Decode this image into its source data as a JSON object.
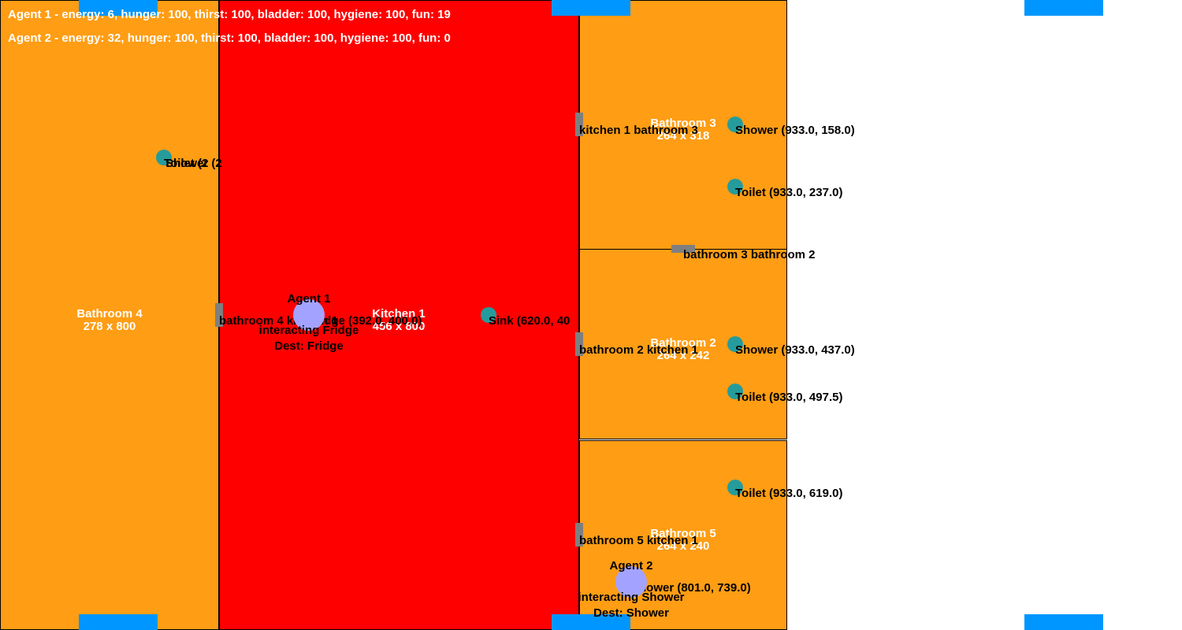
{
  "rooms": {
    "bathroom4": {
      "name": "Bathroom 4",
      "size": "278 x 800",
      "color": "#ff9d14"
    },
    "kitchen1": {
      "name": "Kitchen 1",
      "size": "456 x 800",
      "color": "#ff0000"
    },
    "bathroom3": {
      "name": "Bathroom 3",
      "size": "264 x 318",
      "color": "#ff9d14"
    },
    "bathroom2": {
      "name": "Bathroom 2",
      "size": "264 x 242",
      "color": "#ff9d14"
    },
    "bathroom5": {
      "name": "Bathroom 5",
      "size": "264 x 240",
      "color": "#ff9d14"
    }
  },
  "doors": {
    "kitchen1_bathroom3": "kitchen 1 bathroom 3",
    "bathroom3_bathroom2": "bathroom 3 bathroom 2",
    "bathroom4_kitchen1": "bathroom 4 kitchen 1",
    "bathroom2_kitchen1": "bathroom 2 kitchen 1",
    "bathroom5_kitchen1": "bathroom 5 kitchen 1"
  },
  "objects": {
    "b4_toilet": "Toilet (2",
    "b4_shower": "Shower (2",
    "fridge": "Fridge (392.0, 400.0)",
    "sink": "Sink (620.0, 40",
    "b3_shower": "Shower (933.0, 158.0)",
    "b3_toilet": "Toilet (933.0, 237.0)",
    "b2_shower": "Shower (933.0, 437.0)",
    "b2_toilet": "Toilet (933.0, 497.5)",
    "b5_toilet": "Toilet (933.0, 619.0)",
    "b5_shower": "Shower (801.0, 739.0)"
  },
  "agents": {
    "agent1": {
      "name": "Agent 1",
      "state": "interacting Fridge",
      "dest": "Dest: Fridge"
    },
    "agent2": {
      "name": "Agent 2",
      "state": "interacting Shower",
      "dest": "Dest: Shower"
    }
  },
  "status": {
    "agent1": "Agent 1 - energy: 6, hunger: 100, thirst: 100, bladder: 100, hygiene: 100, fun: 19",
    "agent2": "Agent 2 - energy: 32, hunger: 100, thirst: 100, bladder: 100, hygiene: 100, fun: 0"
  },
  "colors": {
    "object": "#259c9b",
    "agent": "#a3a3ff",
    "window": "#0096ff",
    "door": "#7f7f7f"
  }
}
